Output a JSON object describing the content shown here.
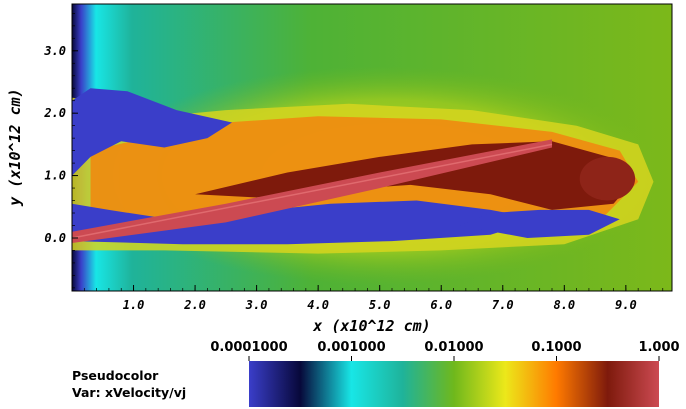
{
  "chart_data": {
    "type": "heatmap",
    "title": "",
    "xlabel": "x (x10^12 cm)",
    "ylabel": "y (x10^12 cm)",
    "xlim": [
      0.0,
      9.75
    ],
    "ylim": [
      -0.85,
      3.75
    ],
    "x_ticks": [
      "1.0",
      "2.0",
      "3.0",
      "4.0",
      "5.0",
      "6.0",
      "7.0",
      "8.0",
      "9.0"
    ],
    "y_ticks": [
      "0.0",
      "1.0",
      "2.0",
      "3.0"
    ],
    "x_tick_values": [
      1,
      2,
      3,
      4,
      5,
      6,
      7,
      8,
      9
    ],
    "y_tick_values": [
      0,
      1,
      2,
      3
    ],
    "legend": {
      "line1": "Pseudocolor",
      "line2": "Var: xVelocity/vj"
    },
    "colorbar": {
      "scale": "log",
      "range": [
        0.0001,
        1.0
      ],
      "tick_labels": [
        "0.0001000",
        "0.001000",
        "0.01000",
        "0.1000",
        "1.000"
      ],
      "tick_values": [
        0.0001,
        0.001,
        0.01,
        0.1,
        1.0
      ],
      "colors": [
        "#3a3ec9",
        "#07083a",
        "#18e6e6",
        "#1fb39a",
        "#6fb81c",
        "#ece81a",
        "#ff7a00",
        "#7e1a0c",
        "#cc4a52"
      ]
    },
    "features": {
      "background_value": 0.01,
      "jet_axis_start": [
        0.0,
        0.0
      ],
      "jet_axis_end": [
        7.8,
        1.5
      ],
      "bow_shock_tip_x": 9.4,
      "cocoon_y_range": [
        -0.1,
        2.2
      ],
      "jet_core_value": 1.0,
      "cocoon_value": 0.0001
    }
  }
}
